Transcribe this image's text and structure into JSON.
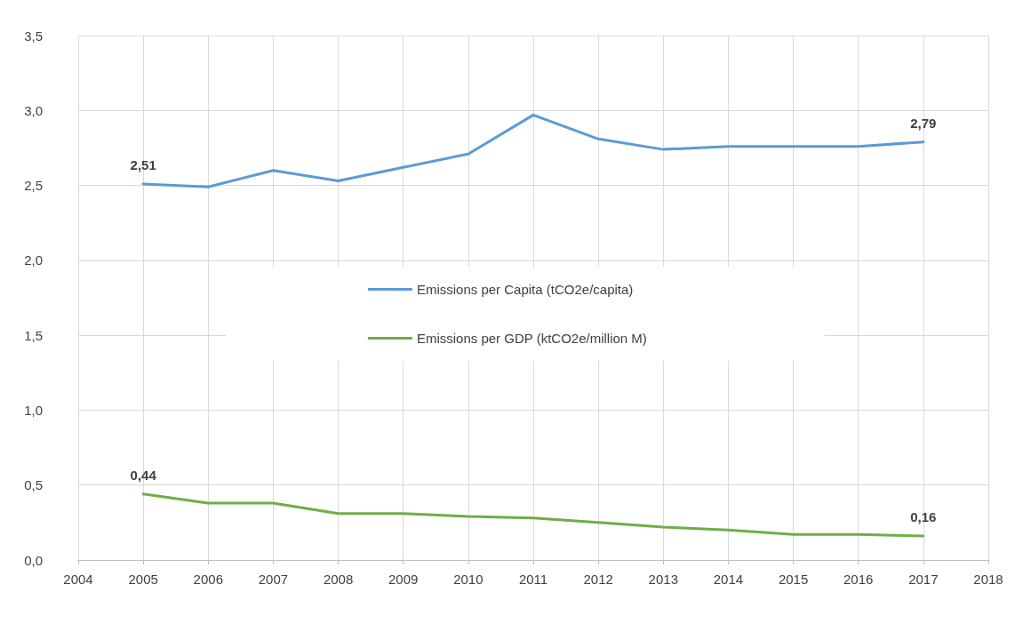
{
  "chart_data": {
    "type": "line",
    "x": [
      2005,
      2006,
      2007,
      2008,
      2009,
      2010,
      2011,
      2012,
      2013,
      2014,
      2015,
      2016,
      2017
    ],
    "series": [
      {
        "name": "Emissions per Capita (tCO2e/capita)",
        "color": "#5b9bd5",
        "values": [
          2.51,
          2.49,
          2.6,
          2.53,
          2.62,
          2.71,
          2.97,
          2.81,
          2.74,
          2.76,
          2.76,
          2.76,
          2.79
        ],
        "value_labels": [
          "2,51",
          null,
          null,
          null,
          null,
          null,
          null,
          null,
          null,
          null,
          null,
          null,
          "2,79"
        ]
      },
      {
        "name": "Emissions per GDP (ktCO2e/million M)",
        "color": "#70ad47",
        "values": [
          0.44,
          0.38,
          0.38,
          0.31,
          0.31,
          0.29,
          0.28,
          0.25,
          0.22,
          0.2,
          0.17,
          0.17,
          0.16
        ],
        "value_labels": [
          "0,44",
          null,
          null,
          null,
          null,
          null,
          null,
          null,
          null,
          null,
          null,
          null,
          "0,16"
        ]
      }
    ],
    "xlim": [
      2004,
      2018
    ],
    "xticks": [
      2004,
      2005,
      2006,
      2007,
      2008,
      2009,
      2010,
      2011,
      2012,
      2013,
      2014,
      2015,
      2016,
      2017,
      2018
    ],
    "ylim": [
      0,
      3.5
    ],
    "yticks": [
      {
        "value": 0,
        "label": "0,0"
      },
      {
        "value": 0.5,
        "label": "0,5"
      },
      {
        "value": 1,
        "label": "1,0"
      },
      {
        "value": 1.5,
        "label": "1,5"
      },
      {
        "value": 2,
        "label": "2,0"
      },
      {
        "value": 2.5,
        "label": "2,5"
      },
      {
        "value": 3,
        "label": "3,0"
      },
      {
        "value": 3.5,
        "label": "3,5"
      }
    ],
    "grid": true,
    "legend": "center",
    "marker": "none",
    "line_style": "solid"
  }
}
